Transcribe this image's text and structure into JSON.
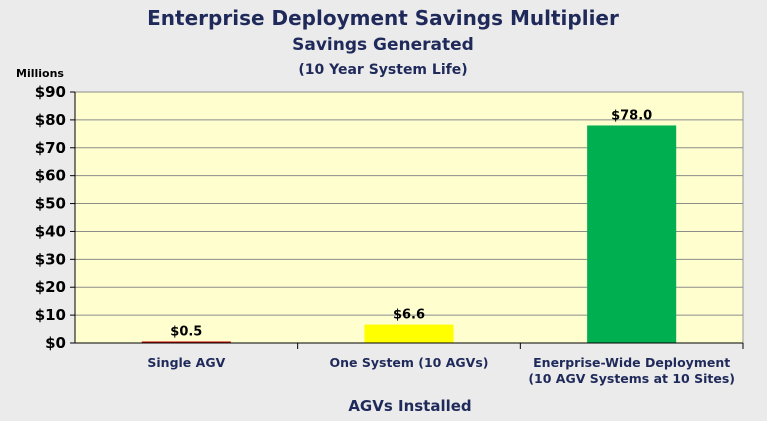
{
  "colors": {
    "background": "#ebebeb",
    "plot_background": "#fefecf",
    "text": "#1f2a5a"
  },
  "chart_data": {
    "type": "bar",
    "title": "Enterprise Deployment Savings Multiplier",
    "subtitle": "Savings Generated",
    "subtitle2": "(10 Year System Life)",
    "units_label": "Millions",
    "xlabel": "AGVs Installed",
    "ylabel": "",
    "ylim": [
      0,
      90
    ],
    "yticks": [
      0,
      10,
      20,
      30,
      40,
      50,
      60,
      70,
      80,
      90
    ],
    "ytick_labels": [
      "$0",
      "$10",
      "$20",
      "$30",
      "$40",
      "$50",
      "$60",
      "$70",
      "$80",
      "$90"
    ],
    "grid": true,
    "categories": [
      [
        "Single AGV"
      ],
      [
        "One System (10 AGVs)"
      ],
      [
        "Enerprise-Wide Deployment",
        "(10 AGV Systems at 10 Sites)"
      ]
    ],
    "values": [
      0.5,
      6.6,
      78.0
    ],
    "value_labels": [
      "$0.5",
      "$6.6",
      "$78.0"
    ],
    "bar_colors": [
      "#c00000",
      "#ffff00",
      "#00b050"
    ]
  }
}
